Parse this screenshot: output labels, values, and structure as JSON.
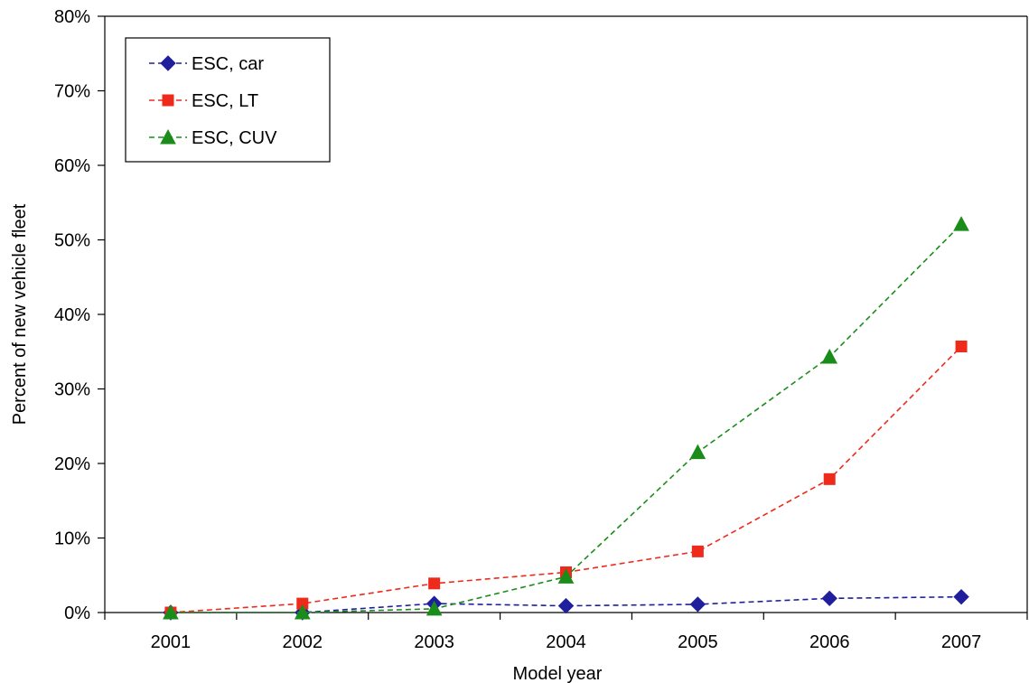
{
  "chart_data": {
    "type": "line",
    "title": "",
    "xlabel": "Model year",
    "ylabel": "Percent of new vehicle fleet",
    "categories": [
      "2001",
      "2002",
      "2003",
      "2004",
      "2005",
      "2006",
      "2007"
    ],
    "y_ticks": [
      "0%",
      "10%",
      "20%",
      "30%",
      "40%",
      "50%",
      "60%",
      "70%",
      "80%"
    ],
    "ylim": [
      0,
      80
    ],
    "grid": false,
    "legend_position": "top-left",
    "series": [
      {
        "name": "ESC, car",
        "values": [
          0.0,
          0.0,
          1.2,
          0.9,
          1.1,
          1.9,
          2.1
        ],
        "color": "#1f1f9e",
        "marker": "diamond"
      },
      {
        "name": "ESC, LT",
        "values": [
          0.0,
          1.2,
          3.9,
          5.4,
          8.2,
          17.9,
          35.7
        ],
        "color": "#ee2a1b",
        "marker": "square"
      },
      {
        "name": "ESC, CUV",
        "values": [
          0.0,
          0.0,
          0.5,
          4.8,
          21.5,
          34.3,
          52.1
        ],
        "color": "#1a8c1a",
        "marker": "triangle"
      }
    ]
  }
}
